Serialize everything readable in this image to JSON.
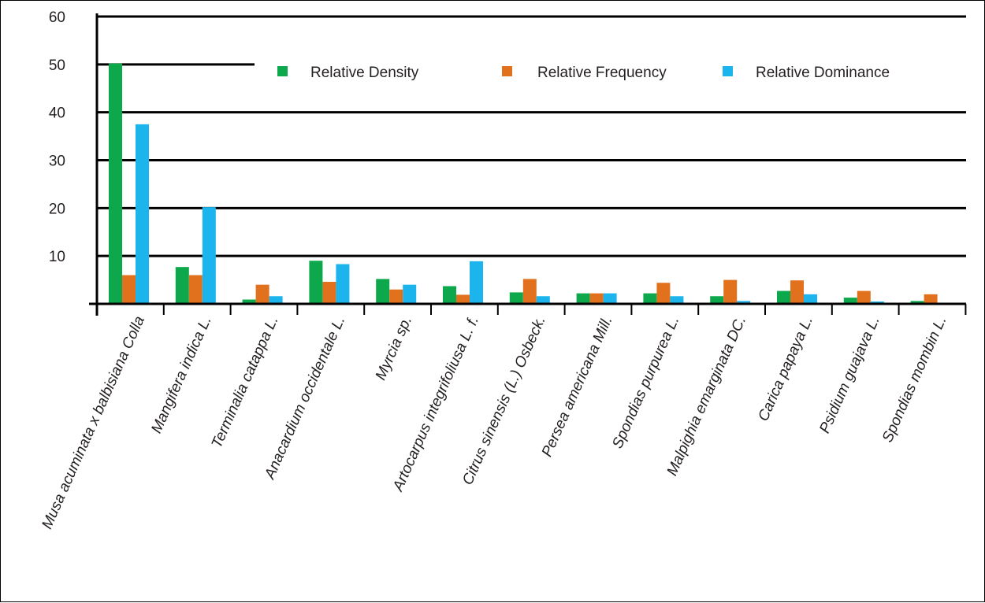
{
  "chart_data": {
    "type": "bar",
    "categories": [
      "Musa acuminata x balbisiana Colla",
      "Mangifera indica L.",
      "Terminalia catappa L.",
      "Anacardium occidentale L.",
      "Myrcia sp.",
      "Artocarpus integrifoliusa L. f.",
      "Citrus sinensis (L.) Osbeck.",
      "Persea americana Mill.",
      "Spondias purpurea L.",
      "Malpighia emarginata DC.",
      "Carica papaya L.",
      "Psidium guajava L.",
      "Spondias mombin L."
    ],
    "series": [
      {
        "name": "Relative Density",
        "color": "#0ca84b",
        "values": [
          50.2,
          7.7,
          0.9,
          9.0,
          5.2,
          3.7,
          2.4,
          2.2,
          2.2,
          1.6,
          2.7,
          1.3,
          0.6
        ]
      },
      {
        "name": "Relative Frequency",
        "color": "#e2711d",
        "values": [
          6.0,
          6.0,
          4.0,
          4.6,
          3.0,
          1.9,
          5.2,
          2.2,
          4.4,
          5.0,
          4.9,
          2.7,
          2.0
        ]
      },
      {
        "name": "Relative Dominance",
        "color": "#1cb4ec",
        "values": [
          37.5,
          20.2,
          1.6,
          8.3,
          4.0,
          8.9,
          1.6,
          2.2,
          1.6,
          0.6,
          2.0,
          0.5,
          0.0
        ]
      }
    ],
    "ylim": [
      0,
      60
    ],
    "yticks": [
      "10",
      "20",
      "30",
      "40",
      "50",
      "60"
    ],
    "grid": true,
    "legend_placement": "top-center",
    "xlabel": "",
    "ylabel": "",
    "title": ""
  }
}
